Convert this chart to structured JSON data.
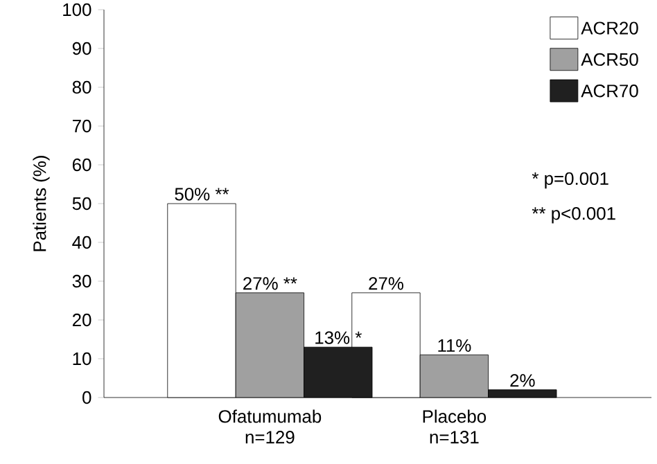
{
  "chart_data": {
    "type": "bar",
    "ylabel": "Patients (%)",
    "categories": [
      "Ofatumumab n=129",
      "Placebo n=131"
    ],
    "ylim": [
      0,
      100
    ],
    "yticks": [
      0,
      10,
      20,
      30,
      40,
      50,
      60,
      70,
      80,
      90,
      100
    ],
    "legend": "top right",
    "grid": false,
    "series": [
      {
        "name": "ACR20",
        "color": "#ffffff",
        "values": [
          50,
          27
        ],
        "value_labels": [
          "50% **",
          "27%"
        ]
      },
      {
        "name": "ACR50",
        "color": "#a0a0a0",
        "values": [
          27,
          11
        ],
        "value_labels": [
          "27% **",
          "11%"
        ]
      },
      {
        "name": "ACR70",
        "color": "#202020",
        "values": [
          13,
          2
        ],
        "value_labels": [
          "13% *",
          "2%"
        ]
      }
    ],
    "annotations": [
      "*    p=0.001",
      "**  p<0.001"
    ]
  }
}
